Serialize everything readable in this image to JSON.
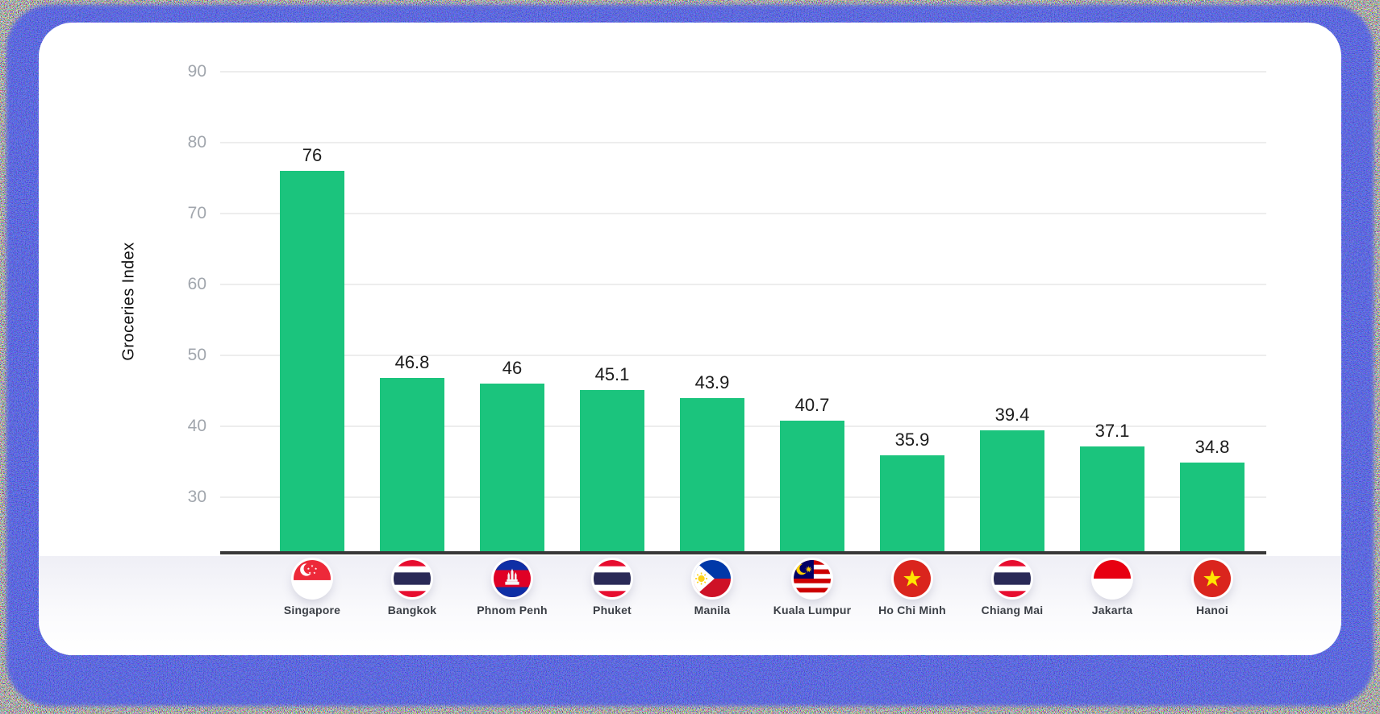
{
  "frame": {
    "border_color": "#4554f0",
    "card_color": "#ffffff"
  },
  "chart_data": {
    "type": "bar",
    "title": "",
    "xlabel": "",
    "ylabel": "Groceries Index",
    "categories": [
      "Singapore",
      "Bangkok",
      "Phnom Penh",
      "Phuket",
      "Manila",
      "Kuala Lumpur",
      "Ho Chi Minh",
      "Chiang Mai",
      "Jakarta",
      "Hanoi"
    ],
    "values": [
      76,
      46.8,
      46,
      45.1,
      43.9,
      40.7,
      35.9,
      39.4,
      37.1,
      34.8
    ],
    "data_labels": [
      "76",
      "46.8",
      "46",
      "45.1",
      "43.9",
      "40.7",
      "35.9",
      "39.4",
      "37.1",
      "34.8"
    ],
    "flags": [
      "singapore",
      "thailand",
      "cambodia",
      "thailand",
      "philippines",
      "malaysia",
      "vietnam",
      "thailand",
      "indonesia",
      "vietnam"
    ],
    "y_ticks": [
      "90",
      "80",
      "70",
      "60",
      "50",
      "40",
      "30"
    ],
    "ylim": [
      22,
      97
    ],
    "grid": true,
    "legend": false,
    "bar_color": "#1BC47D",
    "axis_line_color": "#383838",
    "gridline_color": "#ededed",
    "tick_color": "#a1a6ad",
    "value_label_color": "#1c1c1c",
    "category_label_color": "#3b3f46"
  }
}
